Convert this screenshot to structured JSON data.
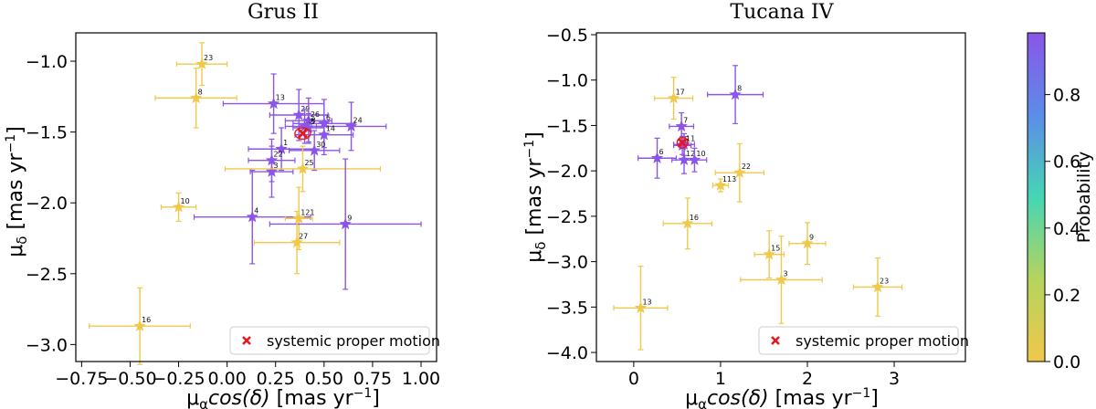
{
  "colors": {
    "low": "#f0c84a",
    "high": "#8a55e8",
    "mid": "#45d6b4",
    "systemic": "#e8161d",
    "ellipse": "#e8161d"
  },
  "chart_data": [
    {
      "type": "scatter",
      "title": "Grus II",
      "xlabel": "μαcos(δ) [mas yr⁻¹]",
      "ylabel": "μδ [mas yr⁻¹]",
      "xlim": [
        -0.78,
        1.08
      ],
      "ylim": [
        -3.12,
        -0.8
      ],
      "xticks": [
        -0.75,
        -0.5,
        -0.25,
        0.0,
        0.25,
        0.5,
        0.75,
        1.0
      ],
      "xtick_labels": [
        "−0.75",
        "−0.50",
        "−0.25",
        "0.00",
        "0.25",
        "0.50",
        "0.75",
        "1.00"
      ],
      "yticks": [
        -3.0,
        -2.5,
        -2.0,
        -1.5,
        -1.0
      ],
      "ytick_labels": [
        "−3.0",
        "−2.5",
        "−2.0",
        "−1.5",
        "−1.0"
      ],
      "systemic": {
        "x": 0.39,
        "y": -1.51,
        "rx": 0.04,
        "ry": 0.04
      },
      "legend": {
        "label": "systemic proper motion",
        "position": "lower right"
      },
      "points": [
        {
          "label": "23",
          "x": -0.13,
          "y": -1.02,
          "xerr": 0.13,
          "yerr": 0.15,
          "p": 0.0
        },
        {
          "label": "8",
          "x": -0.16,
          "y": -1.26,
          "xerr": 0.21,
          "yerr": 0.21,
          "p": 0.0
        },
        {
          "label": "13",
          "x": 0.24,
          "y": -1.3,
          "xerr": 0.26,
          "yerr": 0.21,
          "p": 1.0
        },
        {
          "label": "29",
          "x": 0.37,
          "y": -1.38,
          "xerr": 0.15,
          "yerr": 0.18,
          "p": 1.0
        },
        {
          "label": "26",
          "x": 0.42,
          "y": -1.42,
          "xerr": 0.12,
          "yerr": 0.16,
          "p": 1.0
        },
        {
          "label": "6",
          "x": 0.5,
          "y": -1.44,
          "xerr": 0.16,
          "yerr": 0.17,
          "p": 1.0
        },
        {
          "label": "24",
          "x": 0.64,
          "y": -1.46,
          "xerr": 0.18,
          "yerr": 0.17,
          "p": 1.0
        },
        {
          "label": "14",
          "x": 0.5,
          "y": -1.52,
          "xerr": 0.15,
          "yerr": 0.14,
          "p": 1.0
        },
        {
          "label": "18",
          "x": 0.4,
          "y": -1.46,
          "xerr": 0.1,
          "yerr": 0.12,
          "p": 1.0
        },
        {
          "label": "5",
          "x": 0.42,
          "y": -1.47,
          "xerr": 0.08,
          "yerr": 0.1,
          "p": 1.0
        },
        {
          "label": "1",
          "x": 0.28,
          "y": -1.62,
          "xerr": 0.17,
          "yerr": 0.15,
          "p": 1.0
        },
        {
          "label": "30",
          "x": 0.45,
          "y": -1.63,
          "xerr": 0.13,
          "yerr": 0.14,
          "p": 1.0
        },
        {
          "label": "22",
          "x": 0.23,
          "y": -1.7,
          "xerr": 0.12,
          "yerr": 0.15,
          "p": 1.0
        },
        {
          "label": "3",
          "x": 0.23,
          "y": -1.78,
          "xerr": 0.11,
          "yerr": 0.18,
          "p": 1.0
        },
        {
          "label": "25",
          "x": 0.39,
          "y": -1.76,
          "xerr": 0.4,
          "yerr": 0.16,
          "p": 0.0
        },
        {
          "label": "10",
          "x": -0.25,
          "y": -2.03,
          "xerr": 0.09,
          "yerr": 0.1,
          "p": 0.0
        },
        {
          "label": "4",
          "x": 0.13,
          "y": -2.1,
          "xerr": 0.3,
          "yerr": 0.33,
          "p": 1.0
        },
        {
          "label": "121",
          "x": 0.37,
          "y": -2.11,
          "xerr": 0.07,
          "yerr": 0.22,
          "p": 0.0
        },
        {
          "label": "9",
          "x": 0.61,
          "y": -2.15,
          "xerr": 0.39,
          "yerr": 0.46,
          "p": 1.0
        },
        {
          "label": "27",
          "x": 0.36,
          "y": -2.28,
          "xerr": 0.22,
          "yerr": 0.22,
          "p": 0.0
        },
        {
          "label": "16",
          "x": -0.45,
          "y": -2.87,
          "xerr": 0.26,
          "yerr": 0.27,
          "p": 0.0
        }
      ]
    },
    {
      "type": "scatter",
      "title": "Tucana IV",
      "xlabel": "μαcos(δ) [mas yr⁻¹]",
      "ylabel": "μδ [mas yr⁻¹]",
      "xlim": [
        -0.43,
        3.82
      ],
      "ylim": [
        -4.1,
        -0.48
      ],
      "xticks": [
        0,
        1,
        2,
        3
      ],
      "xtick_labels": [
        "0",
        "1",
        "2",
        "3"
      ],
      "yticks": [
        -4.0,
        -3.5,
        -3.0,
        -2.5,
        -2.0,
        -1.5,
        -1.0,
        -0.5
      ],
      "ytick_labels": [
        "−4.0",
        "−3.5",
        "−3.0",
        "−2.5",
        "−2.0",
        "−1.5",
        "−1.0",
        "−0.5"
      ],
      "systemic": {
        "x": 0.56,
        "y": -1.69,
        "rx": 0.06,
        "ry": 0.06
      },
      "legend": {
        "label": "systemic proper motion",
        "position": "lower right"
      },
      "colorbar": {
        "label": "Probability",
        "ticks": [
          0.0,
          0.2,
          0.4,
          0.6,
          0.8
        ],
        "tick_labels": [
          "0.0",
          "0.2",
          "0.4",
          "0.6",
          "0.8"
        ],
        "max": 0.985
      },
      "points": [
        {
          "label": "17",
          "x": 0.46,
          "y": -1.2,
          "xerr": 0.22,
          "yerr": 0.23,
          "p": 0.0
        },
        {
          "label": "8",
          "x": 1.17,
          "y": -1.16,
          "xerr": 0.32,
          "yerr": 0.32,
          "p": 1.0
        },
        {
          "label": "7",
          "x": 0.55,
          "y": -1.51,
          "xerr": 0.14,
          "yerr": 0.15,
          "p": 1.0
        },
        {
          "label": "11",
          "x": 0.58,
          "y": -1.71,
          "xerr": 0.12,
          "yerr": 0.12,
          "p": 1.0
        },
        {
          "label": "5",
          "x": 0.56,
          "y": -1.72,
          "xerr": 0.1,
          "yerr": 0.1,
          "p": 1.0
        },
        {
          "label": "6",
          "x": 0.27,
          "y": -1.86,
          "xerr": 0.22,
          "yerr": 0.22,
          "p": 1.0
        },
        {
          "label": "12",
          "x": 0.58,
          "y": -1.88,
          "xerr": 0.14,
          "yerr": 0.15,
          "p": 1.0
        },
        {
          "label": "10",
          "x": 0.7,
          "y": -1.88,
          "xerr": 0.14,
          "yerr": 0.13,
          "p": 1.0
        },
        {
          "label": "22",
          "x": 1.22,
          "y": -2.02,
          "xerr": 0.28,
          "yerr": 0.32,
          "p": 0.0
        },
        {
          "label": "113",
          "x": 1.0,
          "y": -2.16,
          "xerr": 0.09,
          "yerr": 0.07,
          "p": 0.0
        },
        {
          "label": "16",
          "x": 0.62,
          "y": -2.58,
          "xerr": 0.28,
          "yerr": 0.28,
          "p": 0.0
        },
        {
          "label": "9",
          "x": 2.0,
          "y": -2.8,
          "xerr": 0.21,
          "yerr": 0.23,
          "p": 0.0
        },
        {
          "label": "15",
          "x": 1.56,
          "y": -2.92,
          "xerr": 0.17,
          "yerr": 0.26,
          "p": 0.0
        },
        {
          "label": "3",
          "x": 1.7,
          "y": -3.2,
          "xerr": 0.47,
          "yerr": 0.48,
          "p": 0.0
        },
        {
          "label": "23",
          "x": 2.81,
          "y": -3.28,
          "xerr": 0.28,
          "yerr": 0.32,
          "p": 0.0
        },
        {
          "label": "13",
          "x": 0.08,
          "y": -3.51,
          "xerr": 0.31,
          "yerr": 0.46,
          "p": 0.0
        }
      ]
    }
  ]
}
